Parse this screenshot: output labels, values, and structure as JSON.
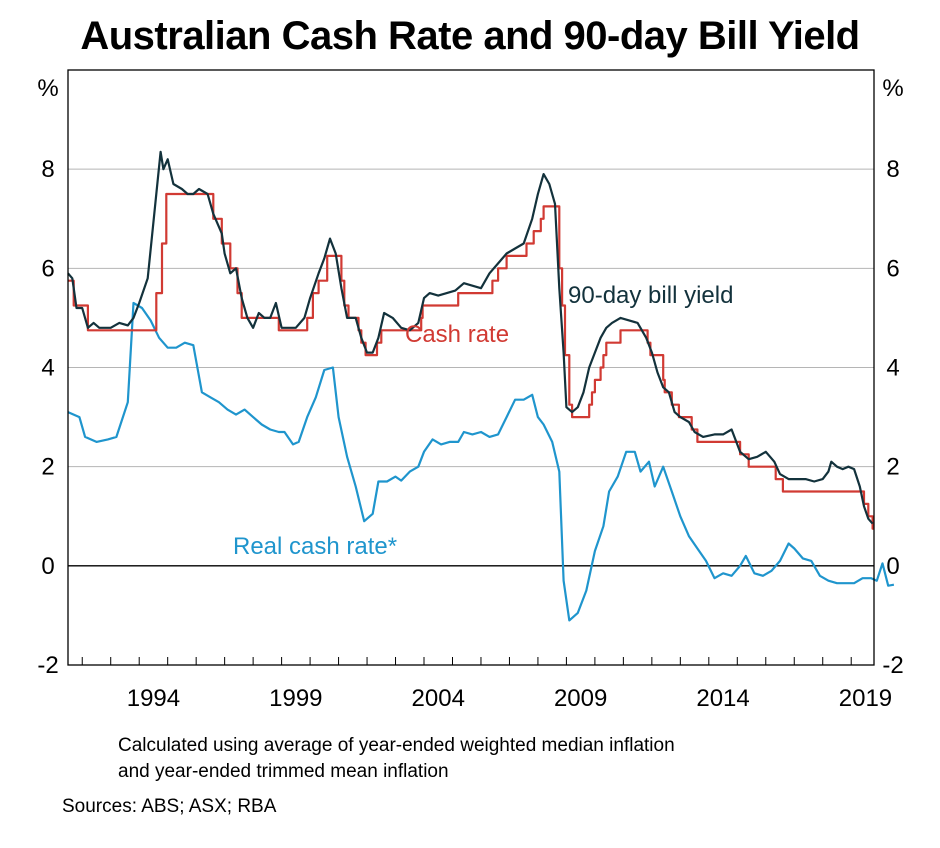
{
  "chart_data": {
    "type": "line",
    "title": "Australian Cash Rate and 90-day Bill Yield",
    "left_unit": "%",
    "right_unit": "%",
    "ylim": [
      -2,
      10
    ],
    "yticks": [
      "8",
      "6",
      "4",
      "2",
      "0",
      "-2"
    ],
    "ytick_values": [
      8,
      6,
      4,
      2,
      0,
      -2
    ],
    "xlim": [
      1991.5,
      2019.8
    ],
    "xticks": [
      "1994",
      "1999",
      "2004",
      "2009",
      "2014",
      "2019"
    ],
    "xtick_values": [
      1994,
      1999,
      2004,
      2009,
      2014,
      2019
    ],
    "annotations": {
      "bill": "90-day bill yield",
      "cash": "Cash rate",
      "real": "Real cash rate*"
    },
    "series": [
      {
        "name": "Cash rate",
        "color": "#d13a33",
        "style": "step",
        "points": [
          [
            1991.5,
            5.75
          ],
          [
            1991.7,
            5.25
          ],
          [
            1992.2,
            4.75
          ],
          [
            1993.0,
            4.75
          ],
          [
            1994.6,
            5.5
          ],
          [
            1994.8,
            6.5
          ],
          [
            1994.95,
            7.5
          ],
          [
            1996.6,
            7.0
          ],
          [
            1996.9,
            6.5
          ],
          [
            1997.2,
            6.0
          ],
          [
            1997.45,
            5.5
          ],
          [
            1997.6,
            5.0
          ],
          [
            1998.9,
            4.75
          ],
          [
            1999.9,
            5.0
          ],
          [
            2000.1,
            5.5
          ],
          [
            2000.3,
            5.75
          ],
          [
            2000.6,
            6.25
          ],
          [
            2001.1,
            5.75
          ],
          [
            2001.2,
            5.25
          ],
          [
            2001.35,
            5.0
          ],
          [
            2001.7,
            4.75
          ],
          [
            2001.8,
            4.5
          ],
          [
            2001.95,
            4.25
          ],
          [
            2002.35,
            4.5
          ],
          [
            2002.5,
            4.75
          ],
          [
            2003.9,
            5.0
          ],
          [
            2003.95,
            5.25
          ],
          [
            2005.2,
            5.5
          ],
          [
            2006.4,
            5.75
          ],
          [
            2006.6,
            6.0
          ],
          [
            2006.9,
            6.25
          ],
          [
            2007.6,
            6.5
          ],
          [
            2007.85,
            6.75
          ],
          [
            2008.1,
            7.0
          ],
          [
            2008.2,
            7.25
          ],
          [
            2008.75,
            6.0
          ],
          [
            2008.85,
            5.25
          ],
          [
            2008.95,
            4.25
          ],
          [
            2009.1,
            3.25
          ],
          [
            2009.2,
            3.0
          ],
          [
            2009.8,
            3.25
          ],
          [
            2009.9,
            3.5
          ],
          [
            2010.0,
            3.75
          ],
          [
            2010.2,
            4.0
          ],
          [
            2010.3,
            4.25
          ],
          [
            2010.4,
            4.5
          ],
          [
            2010.9,
            4.75
          ],
          [
            2011.85,
            4.5
          ],
          [
            2011.95,
            4.25
          ],
          [
            2012.4,
            3.75
          ],
          [
            2012.45,
            3.5
          ],
          [
            2012.7,
            3.25
          ],
          [
            2012.95,
            3.0
          ],
          [
            2013.4,
            2.75
          ],
          [
            2013.6,
            2.5
          ],
          [
            2015.1,
            2.25
          ],
          [
            2015.4,
            2.0
          ],
          [
            2016.35,
            1.75
          ],
          [
            2016.6,
            1.5
          ],
          [
            2019.45,
            1.25
          ],
          [
            2019.6,
            1.0
          ],
          [
            2019.75,
            0.75
          ]
        ]
      },
      {
        "name": "90-day bill yield",
        "color": "#13323c",
        "style": "line",
        "points": [
          [
            1991.5,
            5.9
          ],
          [
            1991.65,
            5.8
          ],
          [
            1991.8,
            5.2
          ],
          [
            1992.0,
            5.2
          ],
          [
            1992.2,
            4.8
          ],
          [
            1992.4,
            4.9
          ],
          [
            1992.6,
            4.8
          ],
          [
            1993.0,
            4.8
          ],
          [
            1993.3,
            4.9
          ],
          [
            1993.6,
            4.85
          ],
          [
            1993.8,
            5.0
          ],
          [
            1994.0,
            5.3
          ],
          [
            1994.3,
            5.8
          ],
          [
            1994.6,
            7.5
          ],
          [
            1994.75,
            8.35
          ],
          [
            1994.85,
            8.0
          ],
          [
            1995.0,
            8.2
          ],
          [
            1995.2,
            7.7
          ],
          [
            1995.5,
            7.6
          ],
          [
            1995.7,
            7.5
          ],
          [
            1995.9,
            7.5
          ],
          [
            1996.1,
            7.6
          ],
          [
            1996.4,
            7.5
          ],
          [
            1996.6,
            7.1
          ],
          [
            1996.9,
            6.7
          ],
          [
            1997.0,
            6.3
          ],
          [
            1997.2,
            5.9
          ],
          [
            1997.4,
            6.0
          ],
          [
            1997.6,
            5.4
          ],
          [
            1997.8,
            5.0
          ],
          [
            1998.0,
            4.8
          ],
          [
            1998.2,
            5.1
          ],
          [
            1998.4,
            5.0
          ],
          [
            1998.6,
            5.0
          ],
          [
            1998.8,
            5.3
          ],
          [
            1999.0,
            4.8
          ],
          [
            1999.2,
            4.8
          ],
          [
            1999.5,
            4.8
          ],
          [
            1999.8,
            5.0
          ],
          [
            2000.0,
            5.4
          ],
          [
            2000.3,
            5.9
          ],
          [
            2000.5,
            6.2
          ],
          [
            2000.7,
            6.6
          ],
          [
            2000.9,
            6.3
          ],
          [
            2001.1,
            5.6
          ],
          [
            2001.3,
            5.0
          ],
          [
            2001.6,
            5.0
          ],
          [
            2001.8,
            4.6
          ],
          [
            2002.0,
            4.3
          ],
          [
            2002.2,
            4.3
          ],
          [
            2002.4,
            4.6
          ],
          [
            2002.6,
            5.1
          ],
          [
            2002.9,
            5.0
          ],
          [
            2003.2,
            4.8
          ],
          [
            2003.5,
            4.75
          ],
          [
            2003.8,
            4.9
          ],
          [
            2004.0,
            5.4
          ],
          [
            2004.2,
            5.5
          ],
          [
            2004.5,
            5.45
          ],
          [
            2004.8,
            5.5
          ],
          [
            2005.1,
            5.55
          ],
          [
            2005.4,
            5.7
          ],
          [
            2005.7,
            5.65
          ],
          [
            2006.0,
            5.6
          ],
          [
            2006.3,
            5.9
          ],
          [
            2006.6,
            6.1
          ],
          [
            2006.9,
            6.3
          ],
          [
            2007.2,
            6.4
          ],
          [
            2007.5,
            6.5
          ],
          [
            2007.8,
            7.0
          ],
          [
            2008.0,
            7.5
          ],
          [
            2008.2,
            7.9
          ],
          [
            2008.4,
            7.7
          ],
          [
            2008.6,
            7.3
          ],
          [
            2008.75,
            5.6
          ],
          [
            2008.9,
            4.3
          ],
          [
            2009.0,
            3.2
          ],
          [
            2009.2,
            3.1
          ],
          [
            2009.4,
            3.2
          ],
          [
            2009.6,
            3.5
          ],
          [
            2009.8,
            4.0
          ],
          [
            2010.0,
            4.3
          ],
          [
            2010.2,
            4.6
          ],
          [
            2010.4,
            4.8
          ],
          [
            2010.6,
            4.9
          ],
          [
            2010.9,
            5.0
          ],
          [
            2011.2,
            4.95
          ],
          [
            2011.5,
            4.9
          ],
          [
            2011.8,
            4.6
          ],
          [
            2012.0,
            4.3
          ],
          [
            2012.2,
            3.9
          ],
          [
            2012.4,
            3.6
          ],
          [
            2012.6,
            3.5
          ],
          [
            2012.8,
            3.1
          ],
          [
            2013.0,
            3.0
          ],
          [
            2013.3,
            2.9
          ],
          [
            2013.5,
            2.7
          ],
          [
            2013.8,
            2.6
          ],
          [
            2014.2,
            2.65
          ],
          [
            2014.5,
            2.65
          ],
          [
            2014.8,
            2.75
          ],
          [
            2015.1,
            2.3
          ],
          [
            2015.4,
            2.15
          ],
          [
            2015.7,
            2.2
          ],
          [
            2016.0,
            2.3
          ],
          [
            2016.3,
            2.1
          ],
          [
            2016.5,
            1.85
          ],
          [
            2016.8,
            1.75
          ],
          [
            2017.1,
            1.75
          ],
          [
            2017.4,
            1.75
          ],
          [
            2017.7,
            1.7
          ],
          [
            2018.0,
            1.75
          ],
          [
            2018.2,
            1.9
          ],
          [
            2018.3,
            2.1
          ],
          [
            2018.5,
            2.0
          ],
          [
            2018.7,
            1.95
          ],
          [
            2018.9,
            2.0
          ],
          [
            2019.1,
            1.95
          ],
          [
            2019.3,
            1.6
          ],
          [
            2019.45,
            1.2
          ],
          [
            2019.6,
            0.95
          ],
          [
            2019.75,
            0.85
          ]
        ]
      },
      {
        "name": "Real cash rate*",
        "color": "#1f95cd",
        "style": "line",
        "points": [
          [
            1991.5,
            3.1
          ],
          [
            1991.9,
            3.0
          ],
          [
            1992.1,
            2.6
          ],
          [
            1992.5,
            2.5
          ],
          [
            1992.9,
            2.55
          ],
          [
            1993.2,
            2.6
          ],
          [
            1993.6,
            3.3
          ],
          [
            1993.8,
            5.3
          ],
          [
            1994.1,
            5.2
          ],
          [
            1994.4,
            4.95
          ],
          [
            1994.7,
            4.6
          ],
          [
            1995.0,
            4.4
          ],
          [
            1995.3,
            4.4
          ],
          [
            1995.6,
            4.5
          ],
          [
            1995.9,
            4.45
          ],
          [
            1996.2,
            3.5
          ],
          [
            1996.5,
            3.4
          ],
          [
            1996.8,
            3.3
          ],
          [
            1997.1,
            3.15
          ],
          [
            1997.4,
            3.05
          ],
          [
            1997.7,
            3.15
          ],
          [
            1998.0,
            3.0
          ],
          [
            1998.3,
            2.85
          ],
          [
            1998.6,
            2.75
          ],
          [
            1998.9,
            2.7
          ],
          [
            1999.1,
            2.7
          ],
          [
            1999.4,
            2.45
          ],
          [
            1999.6,
            2.5
          ],
          [
            1999.9,
            3.0
          ],
          [
            2000.2,
            3.4
          ],
          [
            2000.5,
            3.95
          ],
          [
            2000.8,
            4.0
          ],
          [
            2001.0,
            3.0
          ],
          [
            2001.3,
            2.2
          ],
          [
            2001.6,
            1.6
          ],
          [
            2001.9,
            0.9
          ],
          [
            2002.2,
            1.05
          ],
          [
            2002.4,
            1.7
          ],
          [
            2002.7,
            1.7
          ],
          [
            2003.0,
            1.8
          ],
          [
            2003.2,
            1.72
          ],
          [
            2003.5,
            1.9
          ],
          [
            2003.8,
            2.0
          ],
          [
            2004.0,
            2.3
          ],
          [
            2004.3,
            2.55
          ],
          [
            2004.6,
            2.45
          ],
          [
            2004.9,
            2.5
          ],
          [
            2005.2,
            2.5
          ],
          [
            2005.4,
            2.7
          ],
          [
            2005.7,
            2.65
          ],
          [
            2006.0,
            2.7
          ],
          [
            2006.3,
            2.6
          ],
          [
            2006.6,
            2.65
          ],
          [
            2006.9,
            3.0
          ],
          [
            2007.2,
            3.35
          ],
          [
            2007.5,
            3.35
          ],
          [
            2007.8,
            3.45
          ],
          [
            2008.0,
            3.0
          ],
          [
            2008.2,
            2.85
          ],
          [
            2008.5,
            2.5
          ],
          [
            2008.75,
            1.9
          ],
          [
            2008.9,
            -0.3
          ],
          [
            2009.1,
            -1.1
          ],
          [
            2009.4,
            -0.95
          ],
          [
            2009.7,
            -0.5
          ],
          [
            2010.0,
            0.3
          ],
          [
            2010.3,
            0.8
          ],
          [
            2010.5,
            1.5
          ],
          [
            2010.8,
            1.8
          ],
          [
            2011.1,
            2.3
          ],
          [
            2011.4,
            2.3
          ],
          [
            2011.6,
            1.9
          ],
          [
            2011.9,
            2.1
          ],
          [
            2012.1,
            1.6
          ],
          [
            2012.4,
            2.0
          ],
          [
            2012.7,
            1.5
          ],
          [
            2013.0,
            1.0
          ],
          [
            2013.3,
            0.6
          ],
          [
            2013.6,
            0.35
          ],
          [
            2013.9,
            0.1
          ],
          [
            2014.2,
            -0.25
          ],
          [
            2014.5,
            -0.15
          ],
          [
            2014.8,
            -0.2
          ],
          [
            2015.1,
            0.0
          ],
          [
            2015.3,
            0.2
          ],
          [
            2015.6,
            -0.15
          ],
          [
            2015.9,
            -0.2
          ],
          [
            2016.2,
            -0.1
          ],
          [
            2016.5,
            0.1
          ],
          [
            2016.8,
            0.45
          ],
          [
            2017.0,
            0.35
          ],
          [
            2017.3,
            0.15
          ],
          [
            2017.6,
            0.1
          ],
          [
            2017.9,
            -0.2
          ],
          [
            2018.2,
            -0.3
          ],
          [
            2018.5,
            -0.35
          ],
          [
            2018.8,
            -0.35
          ],
          [
            2019.1,
            -0.35
          ],
          [
            2019.4,
            -0.25
          ],
          [
            2019.7,
            -0.25
          ],
          [
            2019.9,
            -0.3
          ],
          [
            2020.1,
            0.05
          ],
          [
            2020.3,
            -0.4
          ],
          [
            2020.5,
            -0.38
          ]
        ]
      }
    ]
  },
  "footnote_line1": "Calculated using average of year-ended weighted median inflation",
  "footnote_line2": "and year-ended trimmed mean inflation",
  "sources": "Sources: ABS; ASX; RBA"
}
